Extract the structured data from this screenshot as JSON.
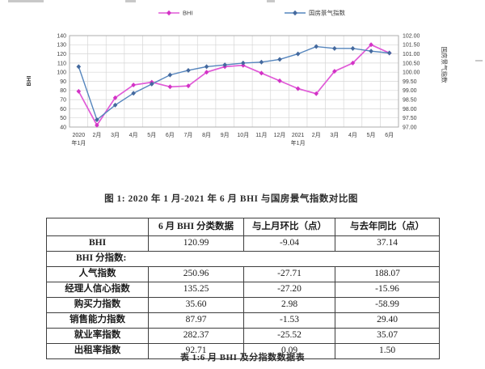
{
  "figure_caption": "图 1: 2020 年 1 月-2021 年 6 月 BHI 与国房景气指数对比图",
  "table_caption": "表 1:6 月 BHI 及分指数数据表",
  "chart_data": {
    "type": "line",
    "grid": true,
    "legend_position": "top",
    "left_axis": {
      "title": "BHI",
      "min": 40,
      "max": 140,
      "step": 10,
      "ticks": [
        "140",
        "130",
        "120",
        "110",
        "100",
        "90",
        "80",
        "70",
        "60",
        "50",
        "40"
      ]
    },
    "right_axis": {
      "title": "国房景气指数",
      "min": 97,
      "max": 102,
      "step": 0.5,
      "ticks": [
        "102.00",
        "101.50",
        "101.00",
        "100.50",
        "100.00",
        "99.50",
        "99.00",
        "98.50",
        "98.00",
        "97.50",
        "97.00"
      ]
    },
    "categories": [
      {
        "l1": "2020",
        "l2": "年1月"
      },
      {
        "l1": "2月",
        "l2": ""
      },
      {
        "l1": "3月",
        "l2": ""
      },
      {
        "l1": "4月",
        "l2": ""
      },
      {
        "l1": "5月",
        "l2": ""
      },
      {
        "l1": "6月",
        "l2": ""
      },
      {
        "l1": "7月",
        "l2": ""
      },
      {
        "l1": "8月",
        "l2": ""
      },
      {
        "l1": "9月",
        "l2": ""
      },
      {
        "l1": "10月",
        "l2": ""
      },
      {
        "l1": "11月",
        "l2": ""
      },
      {
        "l1": "12月",
        "l2": ""
      },
      {
        "l1": "2021",
        "l2": "年1月"
      },
      {
        "l1": "2月",
        "l2": ""
      },
      {
        "l1": "3月",
        "l2": ""
      },
      {
        "l1": "4月",
        "l2": ""
      },
      {
        "l1": "5月",
        "l2": ""
      },
      {
        "l1": "6月",
        "l2": ""
      }
    ],
    "series": [
      {
        "name": "BHI",
        "axis": "left",
        "color": "#e05ad7",
        "marker_color": "#d332c6",
        "values": [
          79,
          42,
          72,
          86,
          89,
          84,
          85,
          100,
          106,
          107.5,
          99,
          90.5,
          82,
          76.5,
          101,
          110,
          130,
          121
        ]
      },
      {
        "name": "国房景气指数",
        "axis": "right",
        "color": "#5585bd",
        "marker_color": "#44699e",
        "values": [
          100.3,
          97.4,
          98.2,
          98.85,
          99.35,
          99.85,
          100.1,
          100.3,
          100.4,
          100.5,
          100.55,
          100.7,
          101.0,
          101.4,
          101.3,
          101.3,
          101.15,
          101.05
        ]
      }
    ]
  },
  "table": {
    "headers": [
      "",
      "6 月 BHI 分类数据",
      "与上月环比（点）",
      "与去年同比（点）"
    ],
    "rows": [
      {
        "label": "BHI",
        "values": [
          "120.99",
          "-9.04",
          "37.14"
        ]
      },
      {
        "label": "BHI 分指数:",
        "span": true
      },
      {
        "label": "人气指数",
        "values": [
          "250.96",
          "-27.71",
          "188.07"
        ]
      },
      {
        "label": "经理人信心指数",
        "values": [
          "135.25",
          "-27.20",
          "-15.96"
        ]
      },
      {
        "label": "购买力指数",
        "values": [
          "35.60",
          "2.98",
          "-58.99"
        ]
      },
      {
        "label": "销售能力指数",
        "values": [
          "87.97",
          "-1.53",
          "29.40"
        ]
      },
      {
        "label": "就业率指数",
        "values": [
          "282.37",
          "-25.52",
          "35.07"
        ]
      },
      {
        "label": "出租率指数",
        "values": [
          "92.71",
          "0.09",
          "1.50"
        ]
      }
    ]
  },
  "colors": {
    "bhi_line": "#e05ad7",
    "climate_line": "#5585bd",
    "gridline": "#d6d6d6",
    "plot_border": "#a8a8a8"
  }
}
